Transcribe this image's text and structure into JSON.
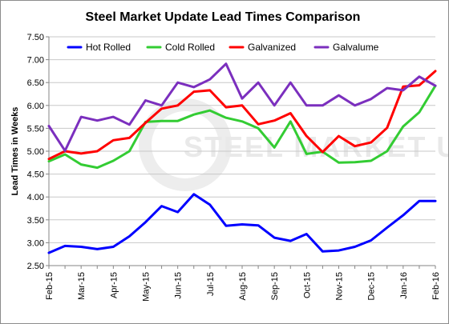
{
  "chart_data": {
    "type": "line",
    "title": "Steel Market Update Lead Times Comparison",
    "ylabel": "Lead Times in Weeks",
    "xlabel": "",
    "ylim": [
      2.5,
      7.5
    ],
    "y_ticks": [
      "2.50",
      "3.00",
      "3.50",
      "4.00",
      "4.50",
      "5.00",
      "5.50",
      "6.00",
      "6.50",
      "7.00",
      "7.50"
    ],
    "x_tick_labels": [
      "Feb-15",
      "Mar-15",
      "Apr-15",
      "May-15",
      "Jun-15",
      "Jul-15",
      "Aug-15",
      "Sep-15",
      "Oct-15",
      "Nov-15",
      "Dec-15",
      "Jan-16",
      "Feb-16"
    ],
    "grid": "horizontal",
    "legend_position": "top",
    "points_per_month": 2,
    "series": [
      {
        "name": "Hot Rolled",
        "color": "#0000ff",
        "values": [
          2.78,
          2.93,
          2.91,
          2.86,
          2.91,
          3.14,
          3.45,
          3.8,
          3.67,
          4.06,
          3.83,
          3.37,
          3.4,
          3.38,
          3.11,
          3.04,
          3.19,
          2.81,
          2.83,
          2.91,
          3.05,
          3.33,
          3.6,
          3.91,
          3.91
        ]
      },
      {
        "name": "Cold Rolled",
        "color": "#33cc33",
        "values": [
          4.78,
          4.93,
          4.71,
          4.64,
          4.79,
          5.0,
          5.64,
          5.66,
          5.66,
          5.8,
          5.89,
          5.73,
          5.65,
          5.5,
          5.08,
          5.65,
          4.94,
          4.99,
          4.75,
          4.76,
          4.79,
          5.0,
          5.54,
          5.85,
          6.43
        ]
      },
      {
        "name": "Galvanized",
        "color": "#ff0000",
        "values": [
          4.83,
          5.0,
          4.95,
          5.0,
          5.24,
          5.29,
          5.62,
          5.93,
          6.0,
          6.3,
          6.33,
          5.96,
          6.0,
          5.59,
          5.67,
          5.83,
          5.33,
          4.98,
          5.33,
          5.11,
          5.19,
          5.51,
          6.41,
          6.44,
          6.75
        ]
      },
      {
        "name": "Galvalume",
        "color": "#7b2fbe",
        "values": [
          5.55,
          5.01,
          5.75,
          5.67,
          5.75,
          5.58,
          6.11,
          6.0,
          6.5,
          6.4,
          6.57,
          6.91,
          6.15,
          6.5,
          6.0,
          6.5,
          6.0,
          6.0,
          6.22,
          6.0,
          6.14,
          6.38,
          6.33,
          6.63,
          6.43
        ]
      }
    ]
  },
  "watermark": {
    "text": "STEEL MARKET UPDATE"
  }
}
